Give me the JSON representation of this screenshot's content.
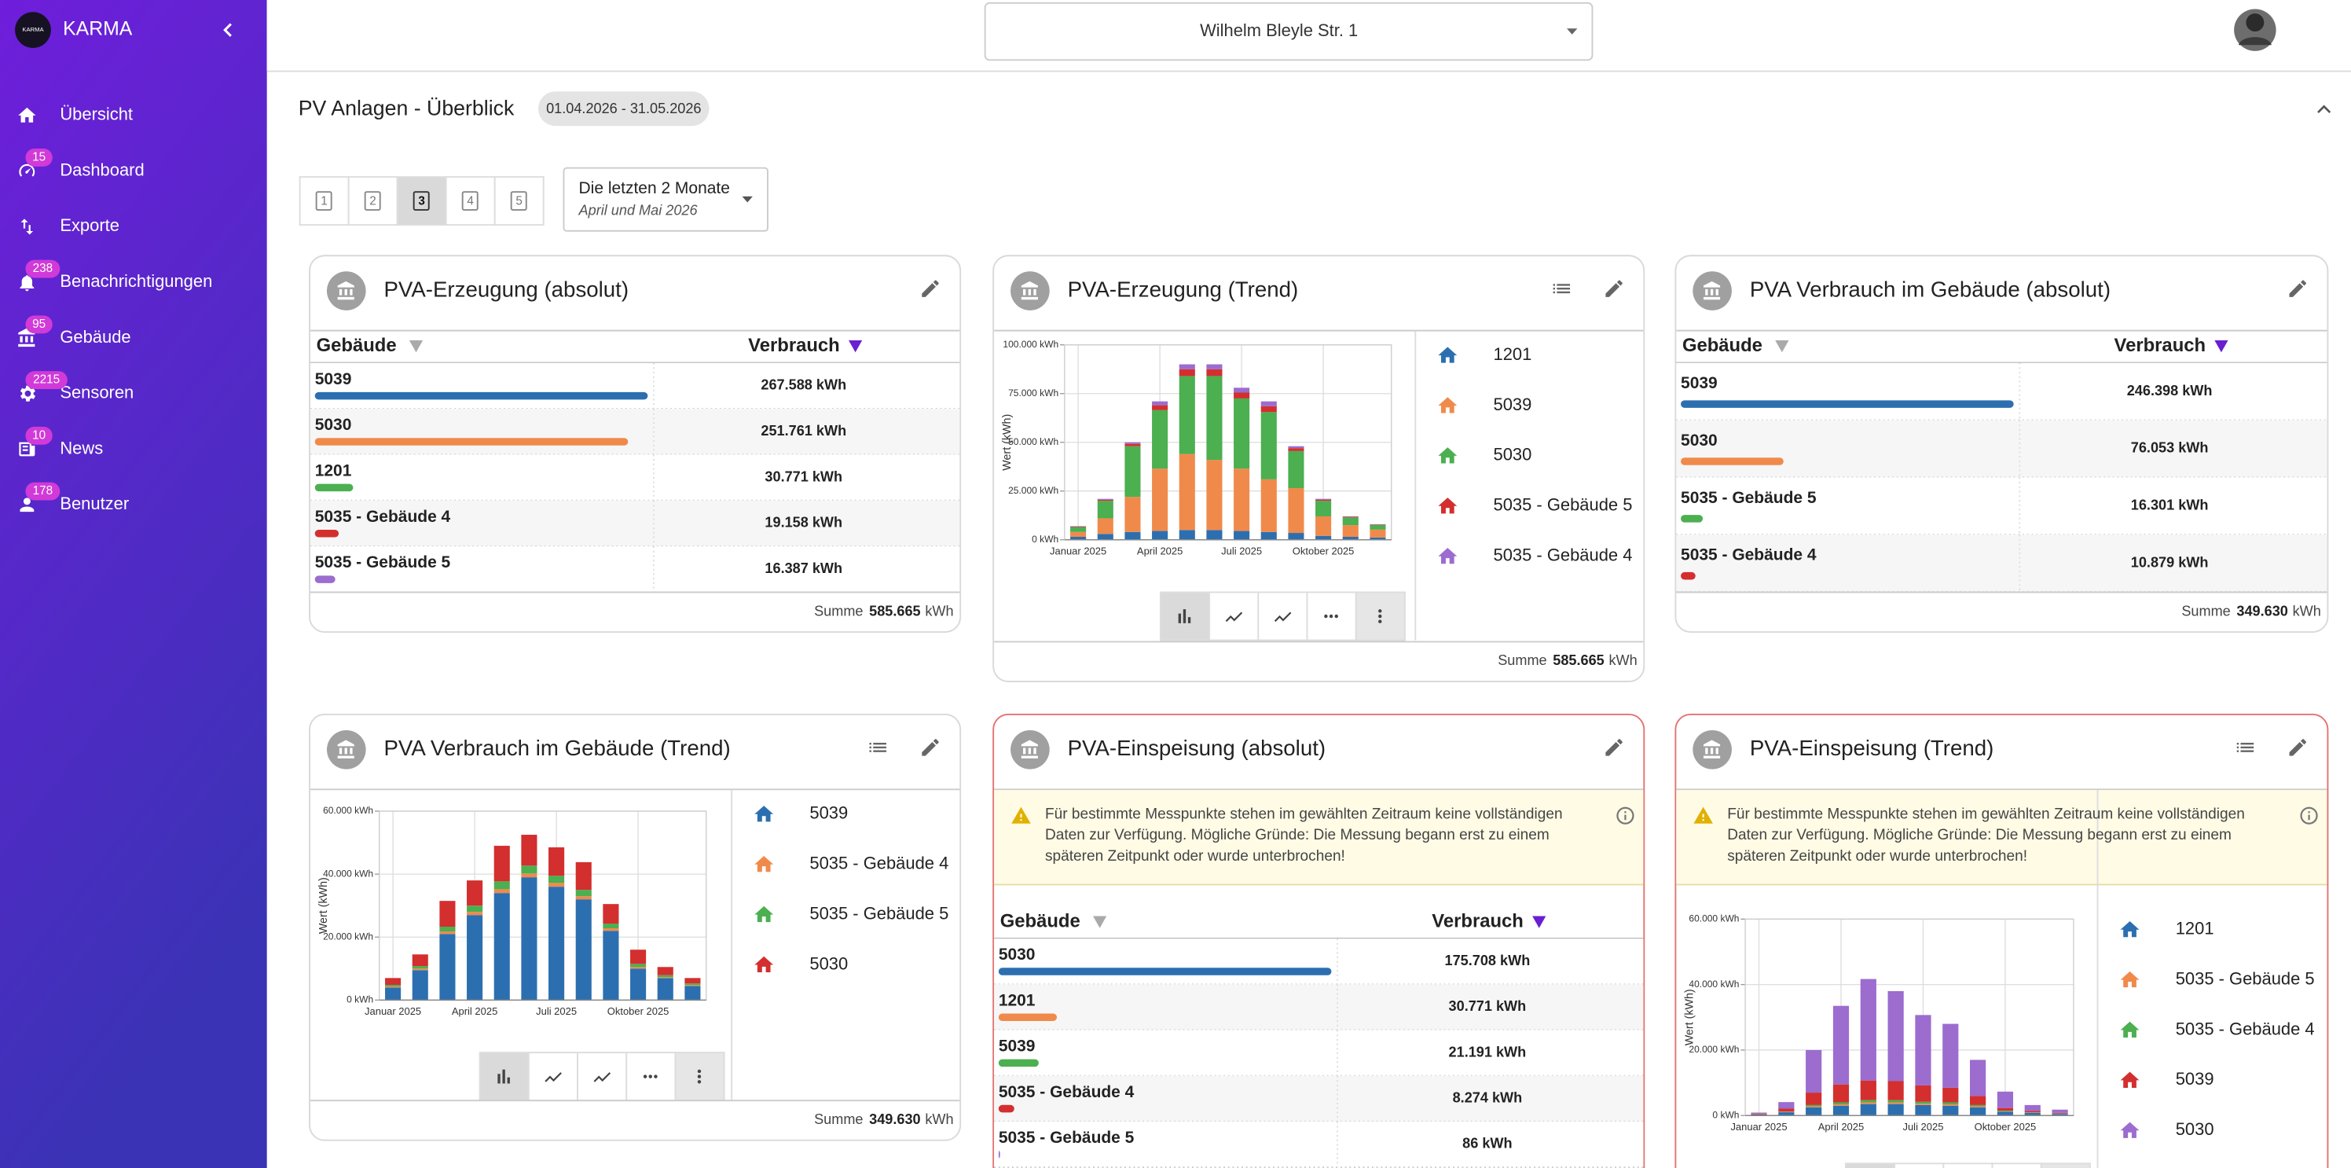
{
  "sidebar": {
    "logo": "KARMA",
    "brand": "KARMA",
    "items": [
      {
        "label": "Übersicht"
      },
      {
        "label": "Dashboard",
        "badge": 15
      },
      {
        "label": "Exporte"
      },
      {
        "label": "Benachrichtigungen",
        "badge": 238
      },
      {
        "label": "Gebäude",
        "badge": 95
      },
      {
        "label": "Sensoren",
        "badge": 2215
      },
      {
        "label": "News",
        "badge": 10
      },
      {
        "label": "Benutzer",
        "badge": 178
      }
    ]
  },
  "topbar": {
    "location": "Wilhelm Bleyle Str. 1"
  },
  "section": {
    "title": "PV Anlagen - Überblick",
    "date_range": "01.04.2026 - 31.05.2026",
    "layouts": [
      1,
      2,
      3,
      4,
      5
    ],
    "selected_layout": 3,
    "period": {
      "label": "Die letzten 2 Monate",
      "detail": "April und Mai 2026"
    }
  },
  "widgets": [
    {
      "title": "PVA-Erzeugung (absolut)",
      "type": "table",
      "columns": [
        "Gebäude",
        "Verbrauch"
      ],
      "rows": [
        {
          "name": "5039",
          "value": 267588,
          "value_label": "267.588 kWh",
          "color": "#2c6fb0"
        },
        {
          "name": "5030",
          "value": 251761,
          "value_label": "251.761 kWh",
          "color": "#f08a4b"
        },
        {
          "name": "1201",
          "value": 30771,
          "value_label": "30.771 kWh",
          "color": "#4caf50"
        },
        {
          "name": "5035 - Gebäude 4",
          "value": 19158,
          "value_label": "19.158 kWh",
          "color": "#d32f2f"
        },
        {
          "name": "5035 - Gebäude 5",
          "value": 16387,
          "value_label": "16.387 kWh",
          "color": "#9c6ccf"
        }
      ],
      "sum": {
        "label": "Summe",
        "value": 585665,
        "value_label": "585.665",
        "unit": "kWh"
      }
    },
    {
      "title": "PVA-Erzeugung (Trend)",
      "type": "trend",
      "chart_data": {
        "type": "bar",
        "stacked": true,
        "y_label": "Wert (kWh)",
        "categories": [
          "Januar 2025",
          null,
          null,
          "April 2025",
          null,
          null,
          "Juli 2025",
          null,
          null,
          "Oktober 2025",
          null,
          null
        ],
        "series": [
          {
            "name": "1201",
            "color": "#2c6fb0",
            "values": [
              1500,
              3000,
              4000,
              4500,
              5000,
              5000,
              4500,
              4000,
              3500,
              2000,
              1500,
              1200
            ]
          },
          {
            "name": "5039",
            "color": "#f08a4b",
            "values": [
              2500,
              8000,
              18000,
              32000,
              39000,
              36000,
              32000,
              27000,
              23000,
              10000,
              6000,
              4000
            ]
          },
          {
            "name": "5030",
            "color": "#4caf50",
            "values": [
              2500,
              9000,
              26000,
              30000,
              40000,
              43000,
              36000,
              34500,
              19000,
              8000,
              4000,
              2400
            ]
          },
          {
            "name": "5035 - Gebäude 5",
            "color": "#d32f2f",
            "values": [
              300,
              500,
              1200,
              2500,
              3500,
              3500,
              3000,
              3000,
              1500,
              600,
              300,
              200
            ]
          },
          {
            "name": "5035 - Gebäude 4",
            "color": "#9c6ccf",
            "values": [
              200,
              500,
              800,
              2000,
              2500,
              2500,
              2500,
              2500,
              1000,
              400,
              200,
              200
            ]
          }
        ],
        "ylim": [
          0,
          100000
        ],
        "yticks": [
          {
            "value": 0,
            "label": "0 kWh"
          },
          {
            "value": 25000,
            "label": "25.000 kWh"
          },
          {
            "value": 50000,
            "label": "50.000 kWh"
          },
          {
            "value": 75000,
            "label": "75.000 kWh"
          },
          {
            "value": 100000,
            "label": "100.000 kWh"
          }
        ],
        "grid": true
      },
      "sum": {
        "label": "Summe",
        "value": 585665,
        "value_label": "585.665",
        "unit": "kWh"
      }
    },
    {
      "title": "PVA Verbrauch im Gebäude (absolut)",
      "type": "table",
      "columns": [
        "Gebäude",
        "Verbrauch"
      ],
      "rows": [
        {
          "name": "5039",
          "value": 246398,
          "value_label": "246.398 kWh",
          "color": "#2c6fb0"
        },
        {
          "name": "5030",
          "value": 76053,
          "value_label": "76.053 kWh",
          "color": "#f08a4b"
        },
        {
          "name": "5035 - Gebäude 5",
          "value": 16301,
          "value_label": "16.301 kWh",
          "color": "#4caf50"
        },
        {
          "name": "5035 - Gebäude 4",
          "value": 10879,
          "value_label": "10.879 kWh",
          "color": "#d32f2f"
        }
      ],
      "sum": {
        "label": "Summe",
        "value": 349630,
        "value_label": "349.630",
        "unit": "kWh"
      }
    },
    {
      "title": "PVA Verbrauch im Gebäude (Trend)",
      "type": "trend",
      "chart_data": {
        "type": "bar",
        "stacked": true,
        "y_label": "Wert (kWh)",
        "categories": [
          "Januar 2025",
          null,
          null,
          "April 2025",
          null,
          null,
          "Juli 2025",
          null,
          null,
          "Oktober 2025",
          null,
          null
        ],
        "series": [
          {
            "name": "5039",
            "color": "#2c6fb0",
            "values": [
              4000,
              9500,
              21000,
              27000,
              34000,
              39000,
              36000,
              32000,
              22000,
              10000,
              7000,
              4500
            ]
          },
          {
            "name": "5035 - Gebäude 4",
            "color": "#f08a4b",
            "values": [
              300,
              500,
              800,
              1000,
              1200,
              1200,
              1200,
              1000,
              800,
              500,
              300,
              300
            ]
          },
          {
            "name": "5035 - Gebäude 5",
            "color": "#4caf50",
            "values": [
              500,
              800,
              1500,
              2000,
              2500,
              2500,
              2300,
              2000,
              1500,
              1000,
              600,
              500
            ]
          },
          {
            "name": "5030",
            "color": "#d32f2f",
            "values": [
              2200,
              3700,
              8200,
              8000,
              11300,
              9800,
              9000,
              8800,
              6200,
              4500,
              2600,
              1700
            ]
          }
        ],
        "ylim": [
          0,
          60000
        ],
        "yticks": [
          {
            "value": 0,
            "label": "0 kWh"
          },
          {
            "value": 20000,
            "label": "20.000 kWh"
          },
          {
            "value": 40000,
            "label": "40.000 kWh"
          },
          {
            "value": 60000,
            "label": "60.000 kWh"
          }
        ],
        "grid": true
      },
      "sum": {
        "label": "Summe",
        "value": 349630,
        "value_label": "349.630",
        "unit": "kWh"
      }
    },
    {
      "title": "PVA-Einspeisung (absolut)",
      "type": "table",
      "columns": [
        "Gebäude",
        "Verbrauch"
      ],
      "warning": "Für bestimmte Messpunkte stehen im gewählten Zeitraum keine vollständigen Daten zur Verfügung. Mögliche Gründe: Die Messung begann erst zu einem späteren Zeitpunkt oder wurde unterbrochen!",
      "rows": [
        {
          "name": "5030",
          "value": 175708,
          "value_label": "175.708 kWh",
          "color": "#2c6fb0"
        },
        {
          "name": "1201",
          "value": 30771,
          "value_label": "30.771 kWh",
          "color": "#f08a4b"
        },
        {
          "name": "5039",
          "value": 21191,
          "value_label": "21.191 kWh",
          "color": "#4caf50"
        },
        {
          "name": "5035 - Gebäude 4",
          "value": 8274,
          "value_label": "8.274 kWh",
          "color": "#d32f2f"
        },
        {
          "name": "5035 - Gebäude 5",
          "value": 86,
          "value_label": "86 kWh",
          "color": "#9c6ccf"
        }
      ]
    },
    {
      "title": "PVA-Einspeisung (Trend)",
      "type": "trend",
      "warning": "Für bestimmte Messpunkte stehen im gewählten Zeitraum keine vollständigen Daten zur Verfügung. Mögliche Gründe: Die Messung begann erst zu einem späteren Zeitpunkt oder wurde unterbrochen!",
      "chart_data": {
        "type": "bar",
        "stacked": true,
        "y_label": "Wert (kWh)",
        "categories": [
          "Januar 2025",
          null,
          null,
          "April 2025",
          null,
          null,
          "Juli 2025",
          null,
          null,
          "Oktober 2025",
          null,
          null
        ],
        "series": [
          {
            "name": "1201",
            "color": "#2c6fb0",
            "values": [
              300,
              1000,
              2500,
              3000,
              3500,
              3500,
              3200,
              3000,
              2500,
              1200,
              800,
              500
            ]
          },
          {
            "name": "5035 - Gebäude 5",
            "color": "#f08a4b",
            "values": [
              50,
              100,
              300,
              400,
              500,
              500,
              400,
              400,
              300,
              100,
              100,
              50
            ]
          },
          {
            "name": "5035 - Gebäude 4",
            "color": "#4caf50",
            "values": [
              50,
              100,
              400,
              600,
              700,
              700,
              600,
              600,
              400,
              200,
              100,
              50
            ]
          },
          {
            "name": "5039",
            "color": "#d32f2f",
            "values": [
              200,
              900,
              3800,
              5500,
              6000,
              5800,
              5000,
              4500,
              2800,
              800,
              400,
              200
            ]
          },
          {
            "name": "5030",
            "color": "#9c6ccf",
            "values": [
              300,
              2000,
              13000,
              24000,
              31000,
              27500,
              21500,
              19500,
              11000,
              5000,
              1800,
              1000
            ]
          }
        ],
        "ylim": [
          0,
          60000
        ],
        "yticks": [
          {
            "value": 0,
            "label": "0 kWh"
          },
          {
            "value": 20000,
            "label": "20.000 kWh"
          },
          {
            "value": 40000,
            "label": "40.000 kWh"
          },
          {
            "value": 60000,
            "label": "60.000 kWh"
          }
        ],
        "grid": true
      }
    }
  ]
}
